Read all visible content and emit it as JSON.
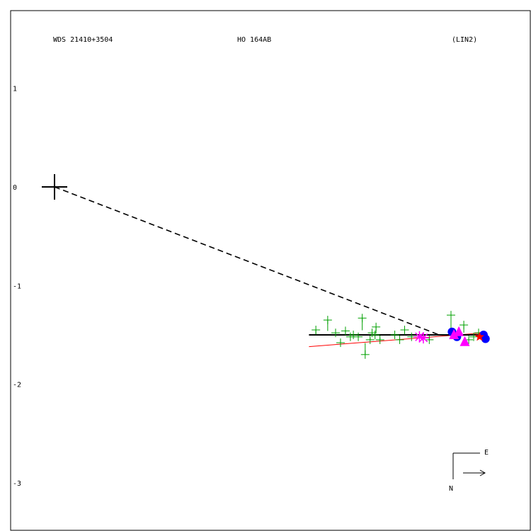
{
  "header": {
    "wds_id": "WDS 21410+3504",
    "discoverer": "HO  164AB",
    "fit_type": "(LIN2)"
  },
  "compass": {
    "east_label": "E",
    "north_label": "N"
  },
  "colors": {
    "frame": "#000000",
    "observations": "#00a000",
    "fit_line": "#ff0000",
    "primary_marker": "#000000",
    "speckle_points": "#0000ff",
    "triangles": "#ff00ff",
    "asterisk": "#ff00ff",
    "red_star": "#ff0000"
  },
  "chart_data": {
    "type": "scatter",
    "title": "",
    "xlabel": "",
    "ylabel": "",
    "ylim": [
      -3.5,
      1.5
    ],
    "xlim": [
      -0.45,
      4.9
    ],
    "y_ticks": [
      1,
      0,
      -1,
      -2,
      -3
    ],
    "grid": false,
    "primary": {
      "x": 0,
      "y": 0
    },
    "connector_to": {
      "x": 3.9,
      "y": -1.5
    },
    "linear_fit_black": {
      "x": [
        2.58,
        4.32
      ],
      "y": [
        -1.5,
        -1.5
      ]
    },
    "linear_fit_red": {
      "x": [
        2.58,
        4.35
      ],
      "y": [
        -1.62,
        -1.48
      ]
    },
    "series": [
      {
        "marker": "plus",
        "color": "#00a000",
        "x": [
          2.65,
          2.77,
          2.85,
          2.9,
          2.95,
          3.0,
          3.03,
          3.08,
          3.12,
          3.15,
          3.2,
          3.22,
          3.25,
          3.26,
          3.3,
          3.45,
          3.5,
          3.55,
          3.62,
          3.8,
          4.02,
          4.05,
          4.1,
          4.15,
          4.2,
          4.25,
          4.3
        ],
        "y": [
          -1.45,
          -1.35,
          -1.48,
          -1.58,
          -1.46,
          -1.52,
          -1.5,
          -1.52,
          -1.33,
          -1.7,
          -1.55,
          -1.48,
          -1.5,
          -1.42,
          -1.55,
          -1.5,
          -1.55,
          -1.45,
          -1.52,
          -1.55,
          -1.3,
          -1.48,
          -1.5,
          -1.4,
          -1.55,
          -1.52,
          -1.48
        ]
      },
      {
        "marker": "circle",
        "color": "#0000ff",
        "x": [
          4.03,
          4.08,
          4.35,
          4.37
        ],
        "y": [
          -1.47,
          -1.52,
          -1.5,
          -1.54
        ]
      },
      {
        "marker": "triangle",
        "color": "#ff00ff",
        "x": [
          4.05,
          4.1,
          4.16
        ],
        "y": [
          -1.5,
          -1.47,
          -1.57
        ]
      },
      {
        "marker": "asterisk",
        "color": "#ff00ff",
        "x": [
          3.7,
          3.74
        ],
        "y": [
          -1.52,
          -1.53
        ]
      },
      {
        "marker": "star",
        "color": "#ff0000",
        "x": [
          4.31
        ],
        "y": [
          -1.52
        ]
      }
    ]
  }
}
